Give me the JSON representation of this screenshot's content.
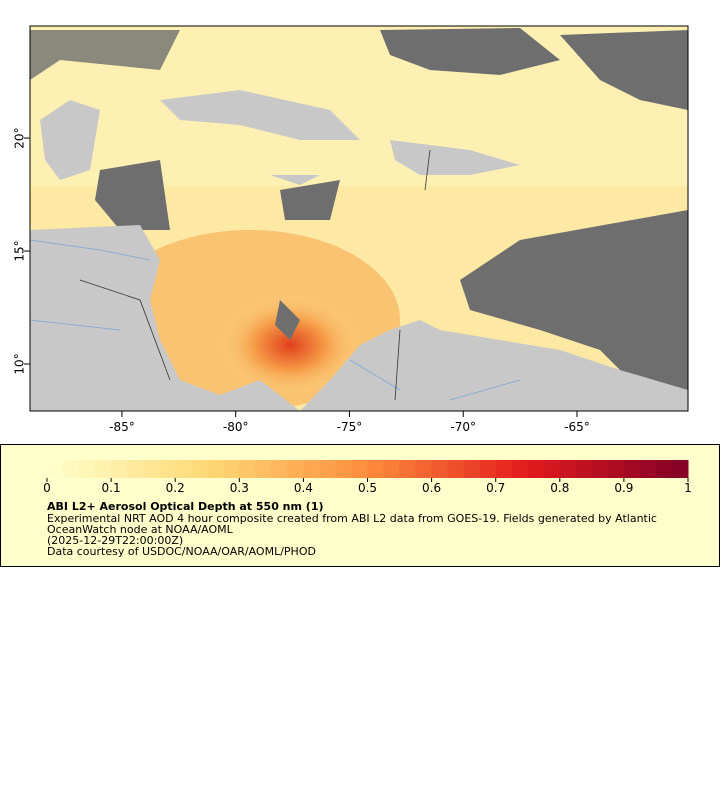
{
  "map": {
    "xlim": [
      -89.04,
      -60.12
    ],
    "ylim": [
      7.92,
      24.96
    ],
    "xticks": [
      {
        "value": -85,
        "label": "-85°"
      },
      {
        "value": -80,
        "label": "-80°"
      },
      {
        "value": -75,
        "label": "-75°"
      },
      {
        "value": -70,
        "label": "-70°"
      },
      {
        "value": -65,
        "label": "-65°"
      }
    ],
    "yticks": [
      {
        "value": 10,
        "label": "10°"
      },
      {
        "value": 15,
        "label": "15°"
      },
      {
        "value": 20,
        "label": "20°"
      }
    ]
  },
  "colorbar": {
    "range": [
      0,
      1
    ],
    "ticks": [
      0,
      0.1,
      0.2,
      0.3,
      0.4,
      0.5,
      0.6,
      0.7,
      0.8,
      0.9,
      1
    ]
  },
  "legend": {
    "title": "ABI L2+ Aerosol Optical Depth at 550 nm (1)",
    "lines": [
      "Experimental NRT AOD 4 hour composite created from ABI L2 data from GOES-19. Fields generated by Atlantic",
      "OceanWatch node at NOAA/AOML",
      "(2025-12-29T22:00:00Z)",
      "Data courtesy of USDOC/NOAA/OAR/AOML/PHOD"
    ]
  }
}
